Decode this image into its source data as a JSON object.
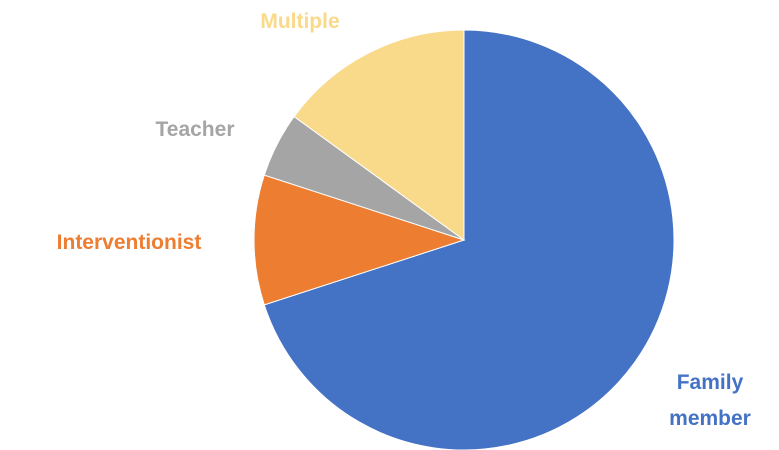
{
  "chart_data": {
    "type": "pie",
    "categories": [
      "Family member",
      "Interventionist",
      "Teacher",
      "Multiple"
    ],
    "values": [
      70,
      10,
      5,
      15
    ],
    "colors": [
      "#4472c4",
      "#ed7d31",
      "#a5a5a5",
      "#f9d98a"
    ]
  }
}
